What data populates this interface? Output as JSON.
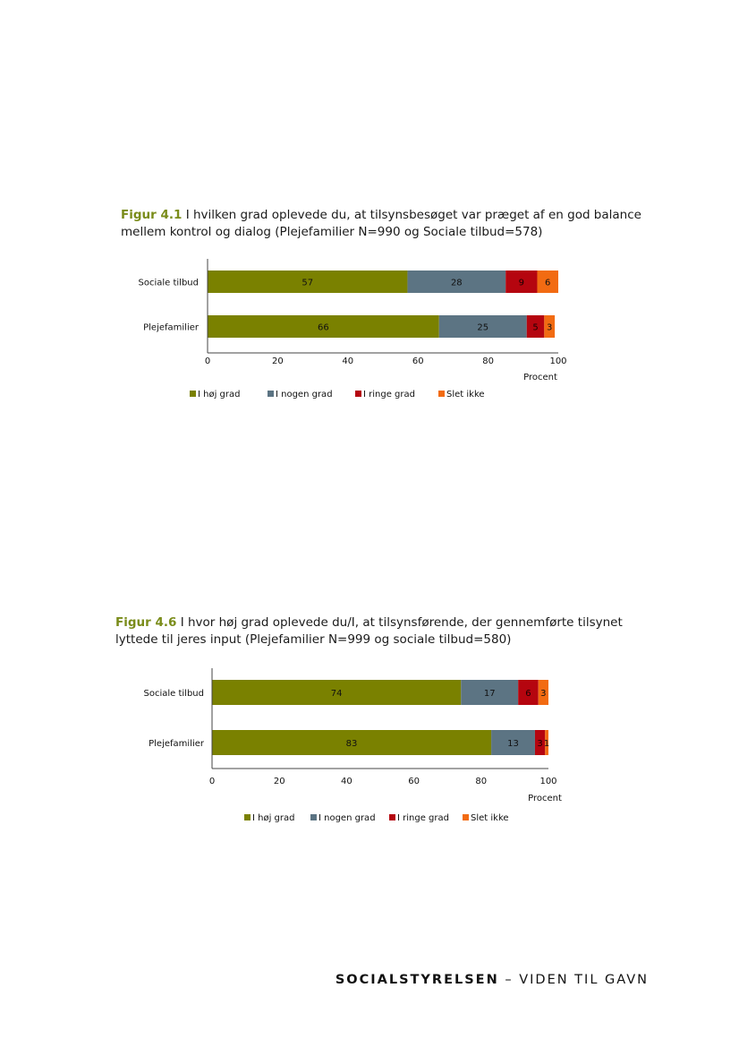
{
  "figures": [
    {
      "number": "Figur 4.1",
      "caption_line1": "I hvilken grad oplevede du, at tilsynsbesøget var præget af en god balance",
      "caption_line2": "mellem kontrol og dialog (Plejefamilier N=990 og Sociale tilbud=578)"
    },
    {
      "number": "Figur 4.6",
      "caption_line1": "I hvor høj grad oplevede du/I, at tilsynsførende, der gennemførte tilsynet",
      "caption_line2": "lyttede til jeres input (Plejefamilier N=999 og sociale tilbud=580)"
    }
  ],
  "colors": {
    "I høj grad": "#7a8100",
    "I nogen grad": "#5c7483",
    "I ringe grad": "#b5050f",
    "Slet ikke": "#f26b12"
  },
  "chart_data": [
    {
      "type": "bar",
      "orientation": "horizontal",
      "stacked": true,
      "categories": [
        "Sociale tilbud",
        "Plejefamilier"
      ],
      "series": [
        {
          "name": "I høj grad",
          "values": [
            57,
            66
          ],
          "labels": [
            "57",
            "66"
          ]
        },
        {
          "name": "I nogen grad",
          "values": [
            28,
            25
          ],
          "labels": [
            "28",
            "25"
          ]
        },
        {
          "name": "I ringe grad",
          "values": [
            9,
            5
          ],
          "labels": [
            "9",
            "5"
          ]
        },
        {
          "name": "Slet ikke",
          "values": [
            6,
            3
          ],
          "labels": [
            "6",
            "3"
          ]
        }
      ],
      "xlim": [
        0,
        100
      ],
      "xticks": [
        "0",
        "20",
        "40",
        "60",
        "80",
        "100"
      ],
      "xlabel": "Procent",
      "ylabel": "",
      "grid": false,
      "legend": "bottom"
    },
    {
      "type": "bar",
      "orientation": "horizontal",
      "stacked": true,
      "categories": [
        "Sociale tilbud",
        "Plejefamilier"
      ],
      "series": [
        {
          "name": "I høj grad",
          "values": [
            74,
            83
          ],
          "labels": [
            "74",
            "83"
          ]
        },
        {
          "name": "I nogen grad",
          "values": [
            17,
            13
          ],
          "labels": [
            "17",
            "13"
          ]
        },
        {
          "name": "I ringe grad",
          "values": [
            6,
            3
          ],
          "labels": [
            "6",
            "3"
          ]
        },
        {
          "name": "Slet ikke",
          "values": [
            3,
            1
          ],
          "labels": [
            "3",
            "1"
          ]
        }
      ],
      "xlim": [
        0,
        100
      ],
      "xticks": [
        "0",
        "20",
        "40",
        "60",
        "80",
        "100"
      ],
      "xlabel": "Procent",
      "ylabel": "",
      "grid": false,
      "legend": "bottom"
    }
  ],
  "footer": {
    "brand": "SOCIALSTYRELSEN",
    "tagline": " – VIDEN TIL GAVN"
  }
}
